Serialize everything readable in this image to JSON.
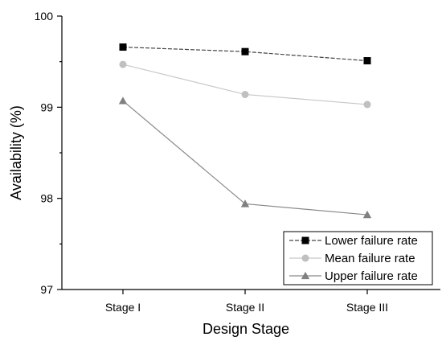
{
  "chart_data": {
    "type": "line",
    "title": "",
    "xlabel": "Design Stage",
    "ylabel": "Availability (%)",
    "categories": [
      "Stage I",
      "Stage II",
      "Stage III"
    ],
    "ylim": [
      97,
      100
    ],
    "yticks": [
      97,
      98,
      99,
      100
    ],
    "grid": false,
    "legend_position": "bottom-right",
    "series": [
      {
        "name": "Lower failure rate",
        "values": [
          99.66,
          99.61,
          99.51
        ],
        "color": "#000000",
        "line_color": "#444444",
        "marker": "square",
        "dash": true
      },
      {
        "name": "Mean failure rate",
        "values": [
          99.47,
          99.14,
          99.03
        ],
        "color": "#c0c0c0",
        "line_color": "#c8c8c8",
        "marker": "circle",
        "dash": false
      },
      {
        "name": "Upper failure rate",
        "values": [
          99.07,
          97.94,
          97.82
        ],
        "color": "#808080",
        "line_color": "#8a8a8a",
        "marker": "triangle",
        "dash": false
      }
    ]
  }
}
